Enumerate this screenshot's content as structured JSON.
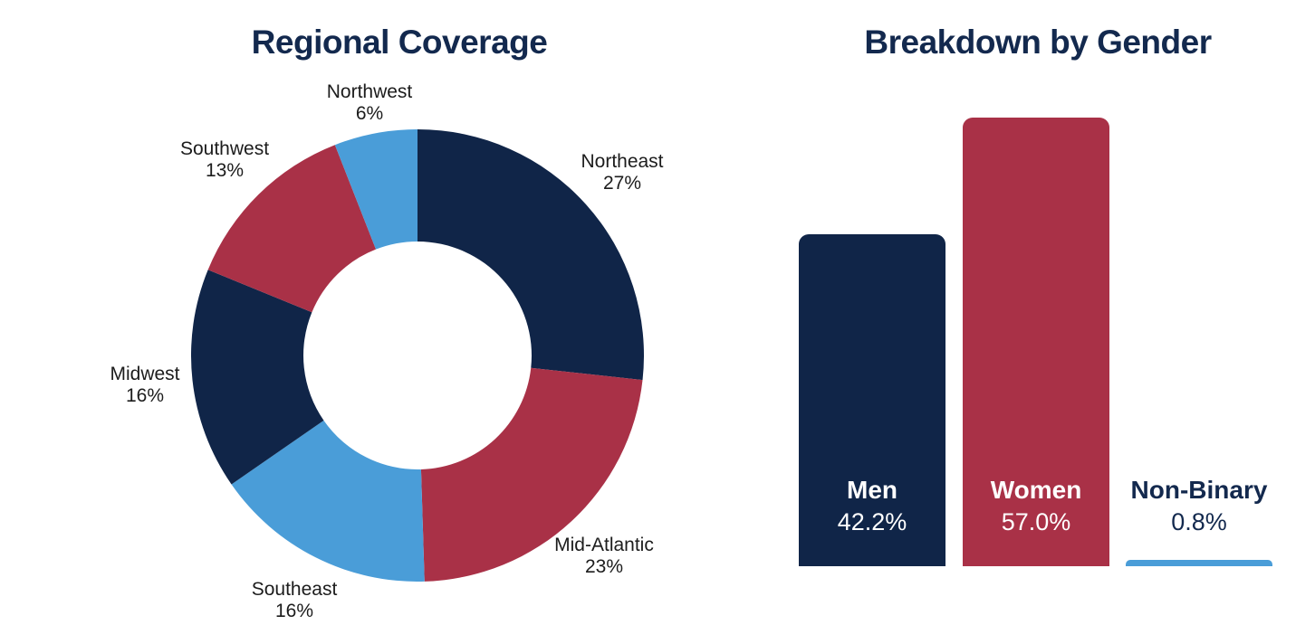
{
  "page": {
    "background": "#ffffff"
  },
  "palette": {
    "navy": "#102548",
    "crimson": "#A93147",
    "light_blue": "#4A9DD8",
    "title_text": "#13294E",
    "donut_label_text": "#1c1c1c"
  },
  "chart_data": [
    {
      "type": "pie",
      "subtype": "donut",
      "title": "Regional Coverage",
      "categories": [
        "Northeast",
        "Mid-Atlantic",
        "Southeast",
        "Midwest",
        "Southwest",
        "Northwest"
      ],
      "values": [
        27,
        23,
        16,
        16,
        13,
        6
      ],
      "value_labels": [
        "27%",
        "23%",
        "16%",
        "16%",
        "13%",
        "6%"
      ],
      "colors": [
        "#102548",
        "#A93147",
        "#4A9DD8",
        "#102548",
        "#A93147",
        "#4A9DD8"
      ],
      "start_angle": "12-o-clock",
      "direction": "clockwise",
      "donut_hole_ratio": 0.5,
      "labels_position": "outside",
      "legend": "none"
    },
    {
      "type": "bar",
      "title": "Breakdown by Gender",
      "categories": [
        "Men",
        "Women",
        "Non-Binary"
      ],
      "values": [
        42.2,
        57.0,
        0.8
      ],
      "value_labels": [
        "42.2%",
        "57.0%",
        "0.8%"
      ],
      "colors": [
        "#102548",
        "#A93147",
        "#4A9DD8"
      ],
      "label_colors": [
        "#FFFFFF",
        "#FFFFFF",
        "#13294E"
      ],
      "labels_inside": [
        true,
        true,
        false
      ],
      "ylim": [
        0,
        57
      ],
      "axes_visible": false,
      "gridlines": false,
      "legend": "none"
    }
  ]
}
